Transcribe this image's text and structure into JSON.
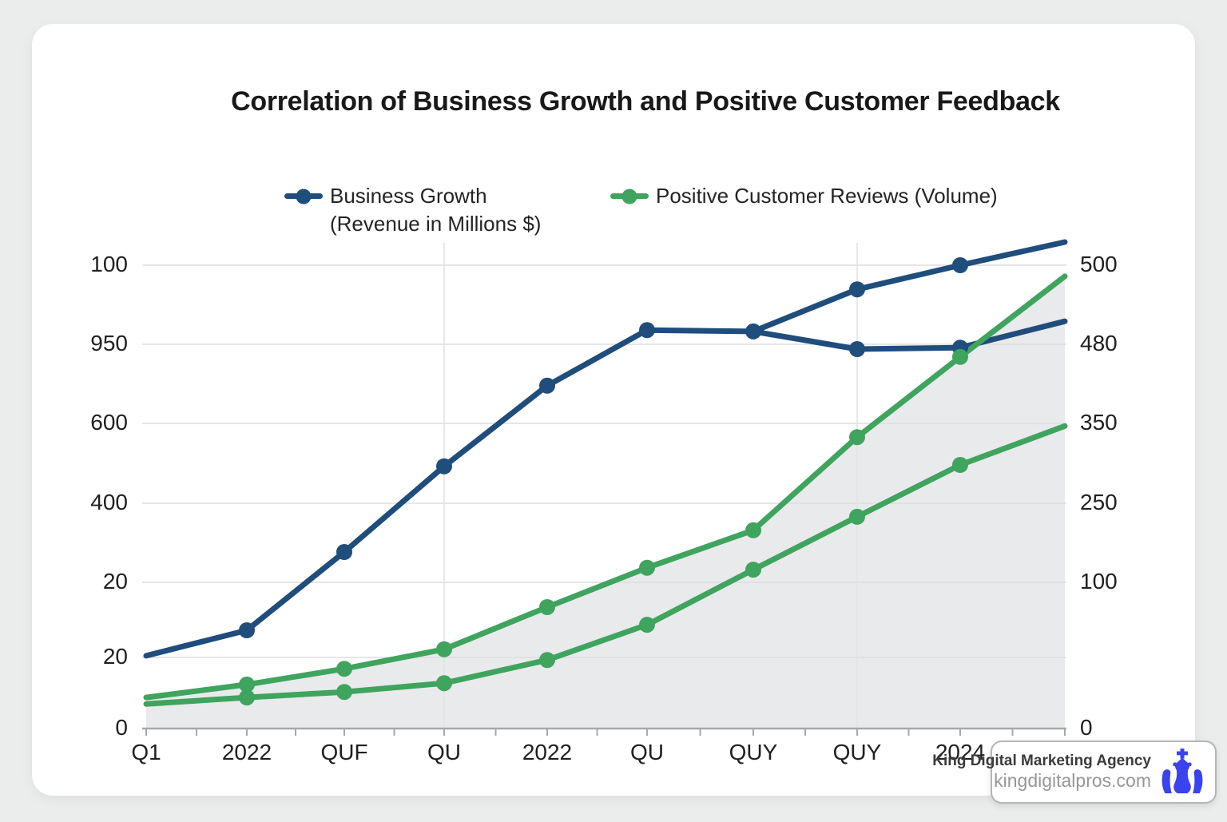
{
  "title": "Correlation of Business Growth and Positive Customer Feedback",
  "colors": {
    "blue": "#1f4d7c",
    "green": "#3fa45e",
    "grid": "#dedede",
    "grid_vertical": "#e3e3e3",
    "axis": "#a9a9a9",
    "area_fill": "#e9eaeb",
    "page_bg": "#ebecec",
    "card_bg": "#ffffff",
    "badge_icon_blue": "#3b43ee"
  },
  "legend": [
    {
      "line1": "Business Growth",
      "line2": "(Revenue in Millions $)",
      "color": "#1f4d7c"
    },
    {
      "line1": "Positive Customer Reviews (Volume)",
      "line2": "",
      "color": "#3fa45e"
    }
  ],
  "watermark": {
    "agency": "King Digital Marketing Agency",
    "website": "kingdigitalpros.com",
    "icon": "chess-king-icon"
  },
  "chart_data": {
    "type": "line",
    "title": "Correlation of Business Growth and Positive Customer Feedback",
    "x_tick_labels": [
      "Q1",
      "2022",
      "QUF",
      "QU",
      "2022",
      "QU",
      "QUY",
      "QUY",
      "2024"
    ],
    "y_axis_left_labels_top_to_bottom": [
      "100",
      "950",
      "600",
      "400",
      "20",
      "20",
      "0"
    ],
    "y_axis_right_labels_top_to_bottom": [
      "500",
      "480",
      "350",
      "250",
      "100",
      "0"
    ],
    "grid": true,
    "legend_position": "top",
    "y_unit": "fraction_of_plot_height_above_baseline",
    "series": [
      {
        "name": "Business Growth (Revenue in Millions $)",
        "color": "#1f4d7c",
        "start_index": 0,
        "y_frac": [
          0.157,
          0.212,
          0.381,
          0.566,
          0.74,
          0.86,
          0.857,
          0.948,
          1.0,
          1.05
        ],
        "markers": [
          0,
          1,
          1,
          1,
          1,
          1,
          1,
          1,
          1,
          0
        ]
      },
      {
        "name": "Business Growth (Revenue in Millions $) - lower branch",
        "color": "#1f4d7c",
        "start_index": 6,
        "y_frac": [
          0.857,
          0.819,
          0.822,
          0.879
        ],
        "markers": [
          0,
          1,
          1,
          0
        ]
      },
      {
        "name": "Positive Customer Reviews (Volume) - upper",
        "color": "#3fa45e",
        "start_index": 0,
        "fill_area": true,
        "y_frac": [
          0.067,
          0.095,
          0.129,
          0.171,
          0.262,
          0.347,
          0.428,
          0.629,
          0.802,
          0.976
        ],
        "markers": [
          0,
          1,
          1,
          1,
          1,
          1,
          1,
          1,
          1,
          0
        ]
      },
      {
        "name": "Positive Customer Reviews (Volume) - lower",
        "color": "#3fa45e",
        "start_index": 0,
        "y_frac": [
          0.053,
          0.067,
          0.079,
          0.098,
          0.148,
          0.224,
          0.343,
          0.457,
          0.569,
          0.653
        ],
        "markers": [
          0,
          1,
          1,
          1,
          1,
          1,
          1,
          1,
          1,
          0
        ]
      }
    ]
  }
}
